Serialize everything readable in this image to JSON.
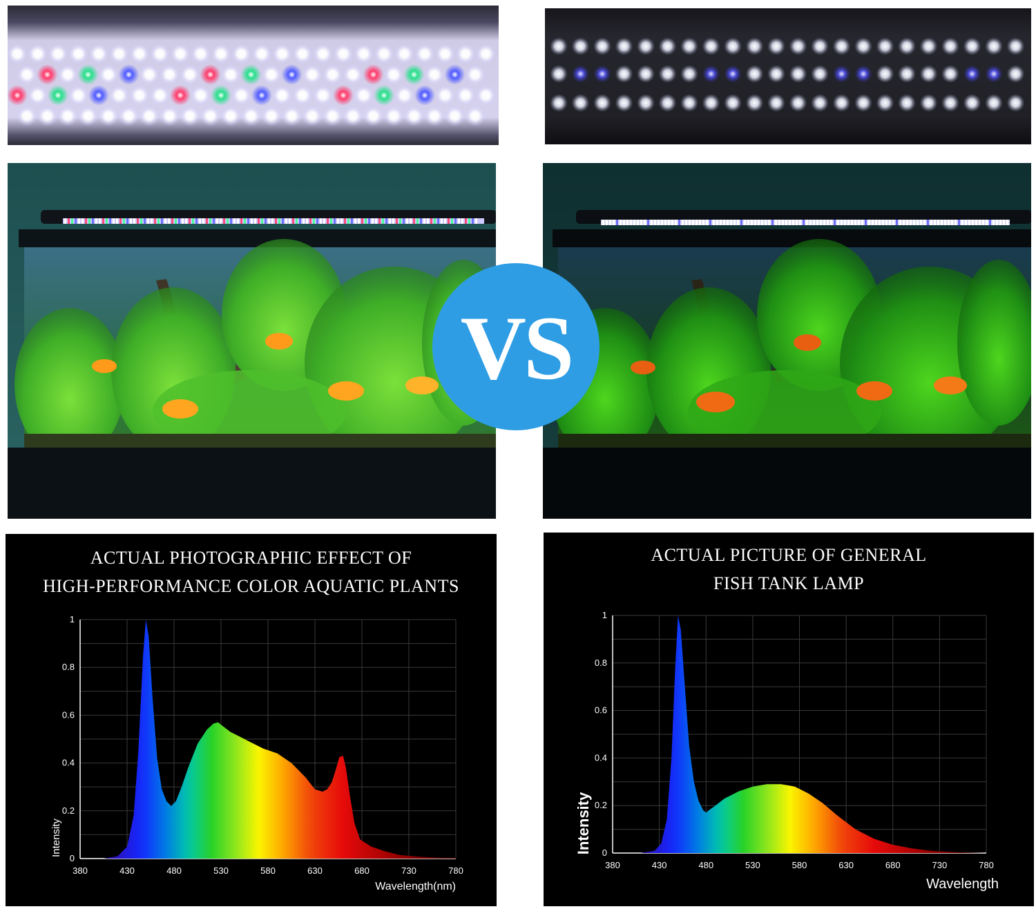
{
  "vs_label": "VS",
  "left_chart": {
    "title_line1": "ACTUAL PHOTOGRAPHIC EFFECT OF",
    "title_line2": "HIGH-PERFORMANCE COLOR AQUATIC PLANTS",
    "ylabel": "Intensity",
    "xlabel": "Wavelength(nm)"
  },
  "right_chart": {
    "title_line1": "ACTUAL PICTURE OF GENERAL",
    "title_line2": "FISH TANK LAMP",
    "ylabel": "Intensity",
    "xlabel": "Wavelength"
  },
  "chart_data": [
    {
      "type": "area",
      "title": "ACTUAL PHOTOGRAPHIC EFFECT OF HIGH-PERFORMANCE COLOR AQUATIC PLANTS",
      "xlabel": "Wavelength(nm)",
      "ylabel": "Intensity",
      "xlim": [
        380,
        780
      ],
      "ylim": [
        0,
        1
      ],
      "x_ticks": [
        "380",
        "430",
        "480",
        "530",
        "580",
        "630",
        "680",
        "730",
        "780"
      ],
      "y_ticks": [
        "0",
        "0.2",
        "0.4",
        "0.6",
        "0.8",
        "1"
      ],
      "grid": true,
      "x": [
        380,
        405,
        420,
        430,
        437,
        442,
        447,
        450,
        453,
        457,
        462,
        467,
        472,
        477,
        482,
        488,
        495,
        505,
        515,
        522,
        527,
        530,
        540,
        550,
        560,
        575,
        590,
        605,
        620,
        630,
        638,
        643,
        648,
        652,
        656,
        660,
        663,
        667,
        672,
        678,
        690,
        705,
        720,
        740,
        760,
        780
      ],
      "values": [
        0,
        0,
        0.01,
        0.05,
        0.18,
        0.45,
        0.85,
        1.0,
        0.93,
        0.68,
        0.42,
        0.29,
        0.24,
        0.22,
        0.24,
        0.3,
        0.38,
        0.48,
        0.54,
        0.565,
        0.57,
        0.56,
        0.53,
        0.51,
        0.49,
        0.46,
        0.44,
        0.4,
        0.34,
        0.29,
        0.28,
        0.29,
        0.32,
        0.37,
        0.425,
        0.43,
        0.38,
        0.27,
        0.15,
        0.08,
        0.05,
        0.03,
        0.015,
        0.008,
        0.004,
        0.003
      ]
    },
    {
      "type": "area",
      "title": "ACTUAL PICTURE OF GENERAL FISH TANK LAMP",
      "xlabel": "Wavelength",
      "ylabel": "Intensity",
      "xlim": [
        380,
        780
      ],
      "ylim": [
        0,
        1
      ],
      "x_ticks": [
        "380",
        "430",
        "480",
        "530",
        "580",
        "630",
        "680",
        "730",
        "780"
      ],
      "y_ticks": [
        "0",
        "0.2",
        "0.4",
        "0.6",
        "0.8",
        "1"
      ],
      "grid": true,
      "x": [
        380,
        410,
        425,
        432,
        438,
        443,
        447,
        450,
        453,
        457,
        462,
        467,
        472,
        477,
        480,
        483,
        490,
        500,
        515,
        530,
        545,
        560,
        575,
        590,
        605,
        620,
        640,
        660,
        680,
        700,
        720,
        740,
        760,
        780
      ],
      "values": [
        0,
        0,
        0.01,
        0.04,
        0.14,
        0.4,
        0.78,
        1.0,
        0.94,
        0.72,
        0.45,
        0.3,
        0.22,
        0.18,
        0.17,
        0.18,
        0.2,
        0.23,
        0.26,
        0.28,
        0.29,
        0.29,
        0.28,
        0.25,
        0.21,
        0.16,
        0.1,
        0.06,
        0.035,
        0.02,
        0.01,
        0.005,
        0.002,
        0
      ]
    }
  ],
  "colors": {
    "vs_badge": "#2e9de4",
    "chart_background": "#000000",
    "grid": "#3a3a3a"
  }
}
